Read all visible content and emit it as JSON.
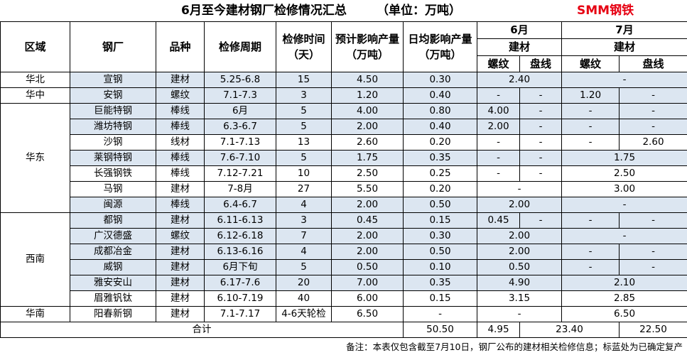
{
  "title": {
    "main": "6月至今建材钢厂检修情况汇总",
    "unit": "（单位：万吨）",
    "brand": "SMM钢铁"
  },
  "headers": {
    "region": "区域",
    "mill": "钢厂",
    "product": "品种",
    "period": "检修周期",
    "duration_line1": "检修时间",
    "duration_line2": "（天）",
    "expected_line1": "预计影响产量",
    "expected_line2": "（万吨）",
    "daily_line1": "日均影响产量",
    "daily_line2": "（万吨）",
    "june": "6月",
    "july": "7月",
    "building_material": "建材",
    "rebar": "螺纹",
    "wire_rod": "盘线"
  },
  "regions": {
    "north": "华北",
    "central": "华中",
    "east": "华东",
    "southwest": "西南",
    "south": "华南"
  },
  "rows": [
    {
      "mill": "宣钢",
      "product": "建材",
      "period": "5.25-6.8",
      "days": "15",
      "expected": "4.50",
      "daily": "0.30",
      "jun_merged": "2.40",
      "jul_merged": "-"
    },
    {
      "mill": "安钢",
      "product": "螺纹",
      "period": "7.1-7.3",
      "days": "3",
      "expected": "1.20",
      "daily": "0.40",
      "jun_rebar": "-",
      "jun_wire": "-",
      "jul_rebar": "1.20",
      "jul_wire": "-"
    },
    {
      "mill": "巨能特钢",
      "product": "棒线",
      "period": "6月",
      "days": "5",
      "expected": "4.00",
      "daily": "0.80",
      "jun_rebar": "4.00",
      "jun_wire": "-",
      "jul_rebar": "-",
      "jul_wire": "-"
    },
    {
      "mill": "潍坊特钢",
      "product": "棒线",
      "period": "6.3-6.7",
      "days": "5",
      "expected": "2.00",
      "daily": "0.40",
      "jun_rebar": "2.00",
      "jun_wire": "-",
      "jul_rebar": "-",
      "jul_wire": "-"
    },
    {
      "mill": "沙钢",
      "product": "线材",
      "period": "7.1-7.13",
      "days": "13",
      "expected": "2.60",
      "daily": "0.20",
      "jun_rebar": "-",
      "jun_wire": "-",
      "jul_rebar": "-",
      "jul_wire": "2.60"
    },
    {
      "mill": "莱钢特钢",
      "product": "棒线",
      "period": "7.6-7.10",
      "days": "5",
      "expected": "1.75",
      "daily": "0.35",
      "jun_rebar": "-",
      "jun_wire": "-",
      "jul_merged": "1.75"
    },
    {
      "mill": "长强钢铁",
      "product": "棒线",
      "period": "7.12-7.21",
      "days": "10",
      "expected": "2.50",
      "daily": "0.25",
      "jun_rebar": "-",
      "jun_wire": "-",
      "jul_merged": "2.50"
    },
    {
      "mill": "马钢",
      "product": "建材",
      "period": "7-8月",
      "days": "27",
      "expected": "5.50",
      "daily": "0.20",
      "jun_merged": "-",
      "jul_merged": "3.00"
    },
    {
      "mill": "闽源",
      "product": "棒线",
      "period": "6.4-6.7",
      "days": "4",
      "expected": "2.00",
      "daily": "0.50",
      "jun_merged": "2.00",
      "jul_merged": "-"
    },
    {
      "mill": "都钢",
      "product": "建材",
      "period": "6.11-6.13",
      "days": "3",
      "expected": "0.45",
      "daily": "0.15",
      "jun_rebar": "0.45",
      "jun_wire": "-",
      "jul_rebar": "-",
      "jul_wire": "-"
    },
    {
      "mill": "广汉德盛",
      "product": "螺纹",
      "period": "6.12-6.18",
      "days": "7",
      "expected": "2.00",
      "daily": "0.30",
      "jun_merged": "2.00",
      "jul_merged": "-"
    },
    {
      "mill": "成都冶金",
      "product": "建材",
      "period": "6.13-6.16",
      "days": "4",
      "expected": "2.00",
      "daily": "0.50",
      "jun_merged": "2.00",
      "jul_rebar": "-",
      "jul_wire": "-"
    },
    {
      "mill": "威钢",
      "product": "建材",
      "period": "6月下旬",
      "days": "5",
      "expected": "0.50",
      "daily": "0.10",
      "jun_merged": "0.50",
      "jul_rebar": "-",
      "jul_wire": "-"
    },
    {
      "mill": "雅安安山",
      "product": "建材",
      "period": "6.17-7.6",
      "days": "20",
      "expected": "7.00",
      "daily": "0.35",
      "jun_merged": "4.90",
      "jul_merged": "2.10"
    },
    {
      "mill": "眉雅钒钛",
      "product": "建材",
      "period": "6.10-7.19",
      "days": "40",
      "expected": "6.00",
      "daily": "0.15",
      "jun_merged": "3.15",
      "jul_merged": "2.85"
    },
    {
      "mill": "阳春新钢",
      "product": "建材",
      "period": "7.1-7.17",
      "days": "4-6天轮检",
      "expected": "6.50",
      "daily": "-",
      "jun_merged": "-",
      "jul_merged": "6.50"
    }
  ],
  "total": {
    "label": "合计",
    "expected": "50.50",
    "daily": "4.95",
    "june": "23.40",
    "july": "22.50"
  },
  "note": "备注：本表仅包含截至7月10日，钢厂公布的建材相关检修信息；标蓝处为已确定复产",
  "colors": {
    "blue_fill": "#dce6f1",
    "brand_red": "#e60012"
  }
}
